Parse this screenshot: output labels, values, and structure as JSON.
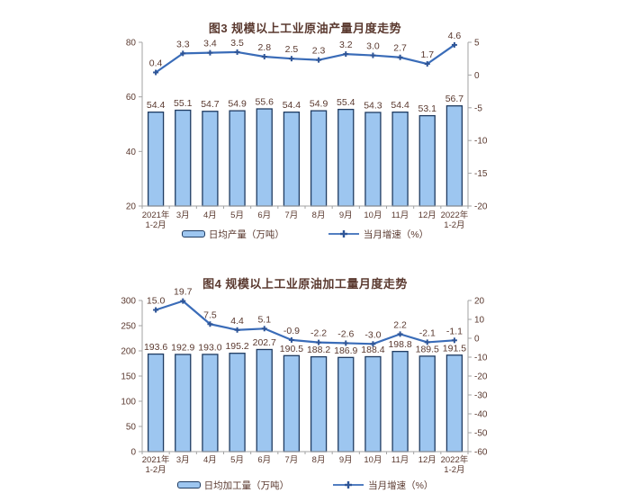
{
  "colors": {
    "background": "#ffffff",
    "bar_fill": "#9dc6f0",
    "bar_border": "#1f3b61",
    "line": "#3a6cb8",
    "marker": "#2e5597",
    "text": "#5a392f",
    "axis": "#a3a3a3"
  },
  "chart_data": [
    {
      "type": "bar+line",
      "title": "图3  规模以上工业原油产量月度走势",
      "categories": [
        "2021年\n1-2月",
        "3月",
        "4月",
        "5月",
        "6月",
        "7月",
        "8月",
        "9月",
        "10月",
        "11月",
        "12月",
        "2022年\n1-2月"
      ],
      "series": [
        {
          "name": "日均产量（万吨）",
          "type": "bar",
          "axis": "left",
          "values": [
            54.4,
            55.1,
            54.7,
            54.9,
            55.6,
            54.4,
            54.9,
            55.4,
            54.3,
            54.4,
            53.1,
            56.7
          ]
        },
        {
          "name": "当月增速（%）",
          "type": "line",
          "axis": "right",
          "values": [
            0.4,
            3.3,
            3.4,
            3.5,
            2.8,
            2.5,
            2.3,
            3.2,
            3.0,
            2.7,
            1.7,
            4.6
          ]
        }
      ],
      "left_axis": {
        "min": 20,
        "max": 80,
        "ticks": [
          80,
          60,
          40,
          20
        ]
      },
      "right_axis": {
        "min": -20,
        "max": 5,
        "ticks": [
          5,
          0,
          -5,
          -10,
          -15,
          -20
        ]
      },
      "grid": false,
      "legend_position": "bottom"
    },
    {
      "type": "bar+line",
      "title": "图4  规模以上工业原油加工量月度走势",
      "categories": [
        "2021年\n1-2月",
        "3月",
        "4月",
        "5月",
        "6月",
        "7月",
        "8月",
        "9月",
        "10月",
        "11月",
        "12月",
        "2022年\n1-2月"
      ],
      "series": [
        {
          "name": "日均加工量（万吨）",
          "type": "bar",
          "axis": "left",
          "values": [
            193.6,
            192.9,
            193.0,
            195.2,
            202.7,
            190.5,
            188.2,
            186.9,
            188.4,
            198.8,
            189.5,
            191.5
          ]
        },
        {
          "name": "当月增速（%）",
          "type": "line",
          "axis": "right",
          "values": [
            15.0,
            19.7,
            7.5,
            4.4,
            5.1,
            -0.9,
            -2.2,
            -2.6,
            -3.0,
            2.2,
            -2.1,
            -1.1
          ]
        }
      ],
      "left_axis": {
        "min": 0,
        "max": 300,
        "ticks": [
          300,
          250,
          200,
          150,
          100,
          50,
          0
        ]
      },
      "right_axis": {
        "min": -60,
        "max": 20,
        "ticks": [
          20,
          10,
          0,
          -10,
          -20,
          -30,
          -40,
          -50,
          -60
        ]
      },
      "grid": false,
      "legend_position": "bottom"
    }
  ]
}
